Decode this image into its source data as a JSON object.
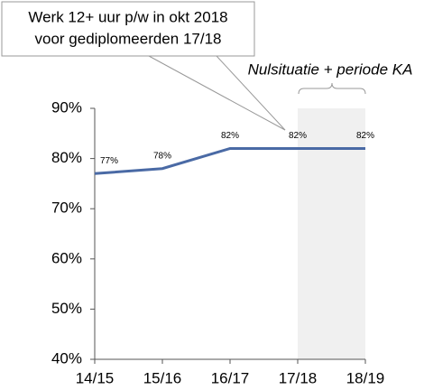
{
  "chart_data": {
    "type": "line",
    "categories": [
      "14/15",
      "15/16",
      "16/17",
      "17/18",
      "18/19"
    ],
    "series": [
      {
        "name": "Werk 12+ uur p/w",
        "color": "#4a6aa5",
        "values": [
          77,
          78,
          82,
          82,
          82
        ],
        "value_labels": [
          "77%",
          "78%",
          "82%",
          "82%",
          "82%"
        ]
      }
    ],
    "ylim": [
      40,
      90
    ],
    "yticks": [
      {
        "value": 40,
        "label": "40%"
      },
      {
        "value": 50,
        "label": "50%"
      },
      {
        "value": 60,
        "label": "60%"
      },
      {
        "value": 70,
        "label": "70%"
      },
      {
        "value": 80,
        "label": "80%"
      },
      {
        "value": 90,
        "label": "90%"
      }
    ],
    "annotations": [
      "Werk 12+ uur p/w in okt 2018",
      "voor gediplomeerden 17/18",
      "Nulsituatie + periode KA"
    ]
  }
}
